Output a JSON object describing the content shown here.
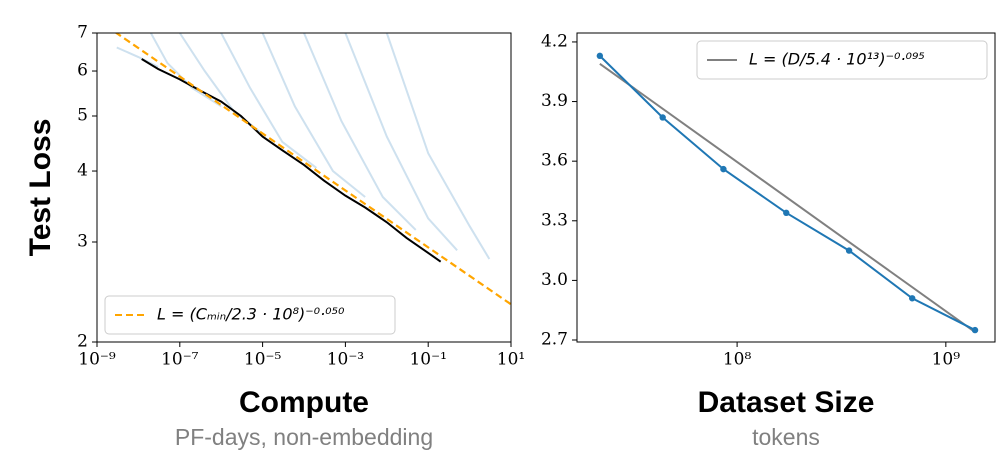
{
  "chart_data": [
    {
      "type": "line",
      "x_label": "Compute",
      "x_sublabel": "PF-days, non-embedding",
      "y_label": "Test Loss",
      "xlog": true,
      "ylog": true,
      "xlim": [
        1e-09,
        10
      ],
      "ylim": [
        2,
        7
      ],
      "xticks": [
        {
          "value": 1e-09,
          "label": "10⁻⁹"
        },
        {
          "value": 1e-07,
          "label": "10⁻⁷"
        },
        {
          "value": 1e-05,
          "label": "10⁻⁵"
        },
        {
          "value": 0.001,
          "label": "10⁻³"
        },
        {
          "value": 0.1,
          "label": "10⁻¹"
        },
        {
          "value": 10,
          "label": "10¹"
        }
      ],
      "yticks": [
        2,
        3,
        4,
        5,
        6,
        7
      ],
      "legend": "lower left",
      "series": [
        {
          "color": "#1f77b4",
          "opacity": 0.22,
          "x": [
            3e-09,
            1e-08,
            3e-08
          ],
          "values": [
            6.6,
            6.35,
            6.1
          ]
        },
        {
          "color": "#1f77b4",
          "opacity": 0.22,
          "x": [
            2e-08,
            5e-08,
            2e-07,
            1e-06
          ],
          "values": [
            7,
            6.2,
            5.6,
            5.2
          ]
        },
        {
          "color": "#1f77b4",
          "opacity": 0.22,
          "x": [
            1e-07,
            4e-07,
            2e-06,
            1e-05
          ],
          "values": [
            7,
            6.0,
            5.1,
            4.65
          ]
        },
        {
          "color": "#1f77b4",
          "opacity": 0.22,
          "x": [
            1e-06,
            5e-06,
            3e-05,
            0.0002
          ],
          "values": [
            7,
            5.6,
            4.5,
            4.05
          ]
        },
        {
          "color": "#1f77b4",
          "opacity": 0.22,
          "x": [
            1e-05,
            6e-05,
            0.0005,
            0.003
          ],
          "values": [
            7,
            5.2,
            4.0,
            3.6
          ]
        },
        {
          "color": "#1f77b4",
          "opacity": 0.22,
          "x": [
            0.0001,
            0.0008,
            0.008,
            0.05
          ],
          "values": [
            7,
            4.9,
            3.6,
            3.15
          ]
        },
        {
          "color": "#1f77b4",
          "opacity": 0.22,
          "x": [
            0.001,
            0.01,
            0.1,
            0.5
          ],
          "values": [
            7,
            4.6,
            3.3,
            2.9
          ]
        },
        {
          "color": "#1f77b4",
          "opacity": 0.22,
          "x": [
            0.01,
            0.1,
            1,
            3
          ],
          "values": [
            7,
            4.3,
            3.2,
            2.8
          ]
        },
        {
          "color": "#000000",
          "x": [
            1.2e-08,
            3e-08,
            1e-07,
            3e-07,
            1e-06,
            3e-06,
            1e-05,
            3e-05,
            0.0001,
            0.0003,
            0.001,
            0.003,
            0.01,
            0.03,
            0.1,
            0.2
          ],
          "values": [
            6.3,
            6.05,
            5.8,
            5.55,
            5.3,
            5.0,
            4.6,
            4.35,
            4.1,
            3.85,
            3.62,
            3.45,
            3.25,
            3.05,
            2.87,
            2.77
          ]
        },
        {
          "name": "L = (Cₘᵢₙ/2.3 · 10⁸)⁻⁰·⁰⁵⁰",
          "color": "#ffa500",
          "dashed": true,
          "x": [
            1e-09,
            10
          ],
          "values": [
            7.39,
            2.33
          ]
        }
      ]
    },
    {
      "type": "line",
      "x_label": "Dataset Size",
      "x_sublabel": "tokens",
      "xlog": true,
      "ylog": false,
      "xlim": [
        17100000,
        1720000000
      ],
      "ylim": [
        2.69,
        4.245
      ],
      "xticks": [
        {
          "value": 100000000,
          "label": "10⁸"
        },
        {
          "value": 1000000000,
          "label": "10⁹"
        }
      ],
      "yticks": [
        {
          "value": 2.7,
          "label": "2.7"
        },
        {
          "value": 3.0,
          "label": "3.0"
        },
        {
          "value": 3.3,
          "label": "3.3"
        },
        {
          "value": 3.6,
          "label": "3.6"
        },
        {
          "value": 3.9,
          "label": "3.9"
        },
        {
          "value": 4.2,
          "label": "4.2"
        }
      ],
      "legend": "upper right",
      "series": [
        {
          "name": "L = (D/5.4 · 10¹³)⁻⁰·⁰⁹⁵",
          "color": "#808080",
          "x": [
            22000000,
            1380000000
          ],
          "values": [
            4.09,
            2.74
          ]
        },
        {
          "color": "#1f77b4",
          "markers": true,
          "x": [
            22000000,
            44000000,
            86000000,
            172000000,
            344000000,
            690000000,
            1380000000
          ],
          "values": [
            4.13,
            3.82,
            3.56,
            3.34,
            3.15,
            2.91,
            2.75
          ]
        }
      ]
    }
  ]
}
